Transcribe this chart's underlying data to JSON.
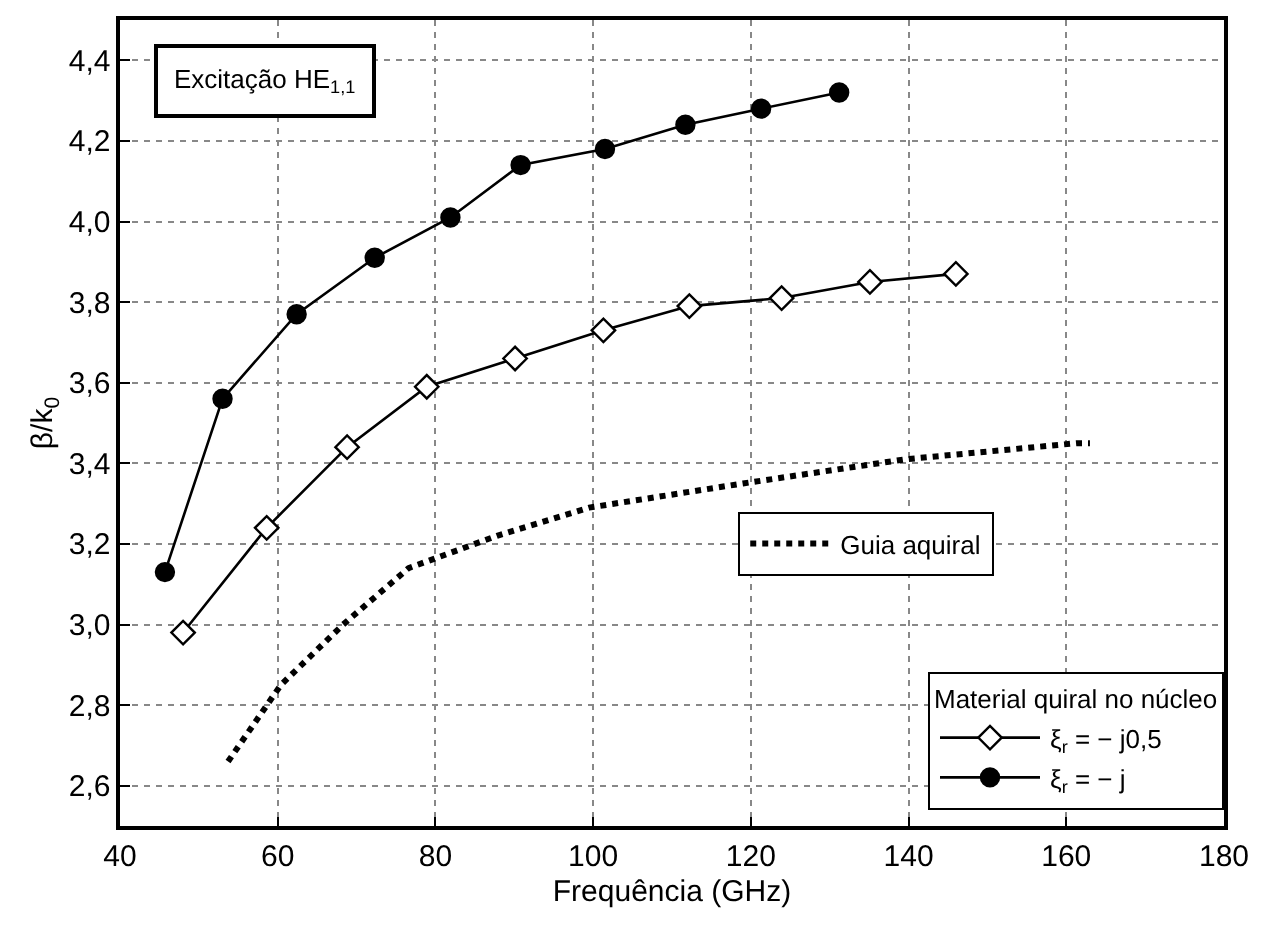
{
  "chart_data": {
    "type": "line",
    "xlabel": "Frequência (GHz)",
    "ylabel": "β/k$_{0}$",
    "legend_title": "Material quiral no núcleo",
    "annotations": [
      "Excitação HE$_{1,1}$"
    ],
    "xlim": [
      40,
      180
    ],
    "ylim": [
      2.5,
      4.5
    ],
    "xticks": [
      40,
      60,
      80,
      100,
      120,
      140,
      160,
      180
    ],
    "yticks": [
      {
        "value": 2.6,
        "label": "2,6"
      },
      {
        "value": 2.8,
        "label": "2,8"
      },
      {
        "value": 3.0,
        "label": "3,0"
      },
      {
        "value": 3.2,
        "label": "3,2"
      },
      {
        "value": 3.4,
        "label": "3,4"
      },
      {
        "value": 3.6,
        "label": "3,6"
      },
      {
        "value": 3.8,
        "label": "3,8"
      },
      {
        "value": 4.0,
        "label": "4,0"
      },
      {
        "value": 4.2,
        "label": "4,2"
      },
      {
        "value": 4.4,
        "label": "4,4"
      }
    ],
    "grid": true,
    "legend": "bottom right",
    "series": [
      {
        "name": "ξ$_{r}$ = − j0,5",
        "color": "#000000",
        "marker": "diamond",
        "line_style": "solid",
        "x": [
          48.0,
          58.6,
          68.8,
          78.9,
          90.1,
          101.3,
          112.2,
          123.9,
          135.1,
          146.0
        ],
        "values": [
          2.98,
          3.24,
          3.44,
          3.59,
          3.66,
          3.73,
          3.79,
          3.81,
          3.85,
          3.87
        ]
      },
      {
        "name": "ξ$_{r}$ = − j",
        "color": "#000000",
        "marker": "circle",
        "line_style": "solid",
        "x": [
          45.7,
          53.0,
          62.4,
          72.3,
          81.9,
          90.8,
          101.5,
          111.7,
          121.3,
          131.2
        ],
        "values": [
          3.13,
          3.56,
          3.77,
          3.91,
          4.01,
          4.14,
          4.18,
          4.24,
          4.28,
          4.32
        ]
      },
      {
        "name": "Guia aquiral",
        "color": "#000000",
        "marker": "none",
        "line_style": "dotted",
        "x": [
          53.7,
          60.4,
          68.3,
          76.6,
          87.8,
          99.5,
          119.0,
          139.6,
          161.4,
          163.0
        ],
        "values": [
          2.66,
          2.85,
          3.0,
          3.14,
          3.22,
          3.29,
          3.35,
          3.41,
          3.45,
          3.45
        ]
      }
    ]
  }
}
